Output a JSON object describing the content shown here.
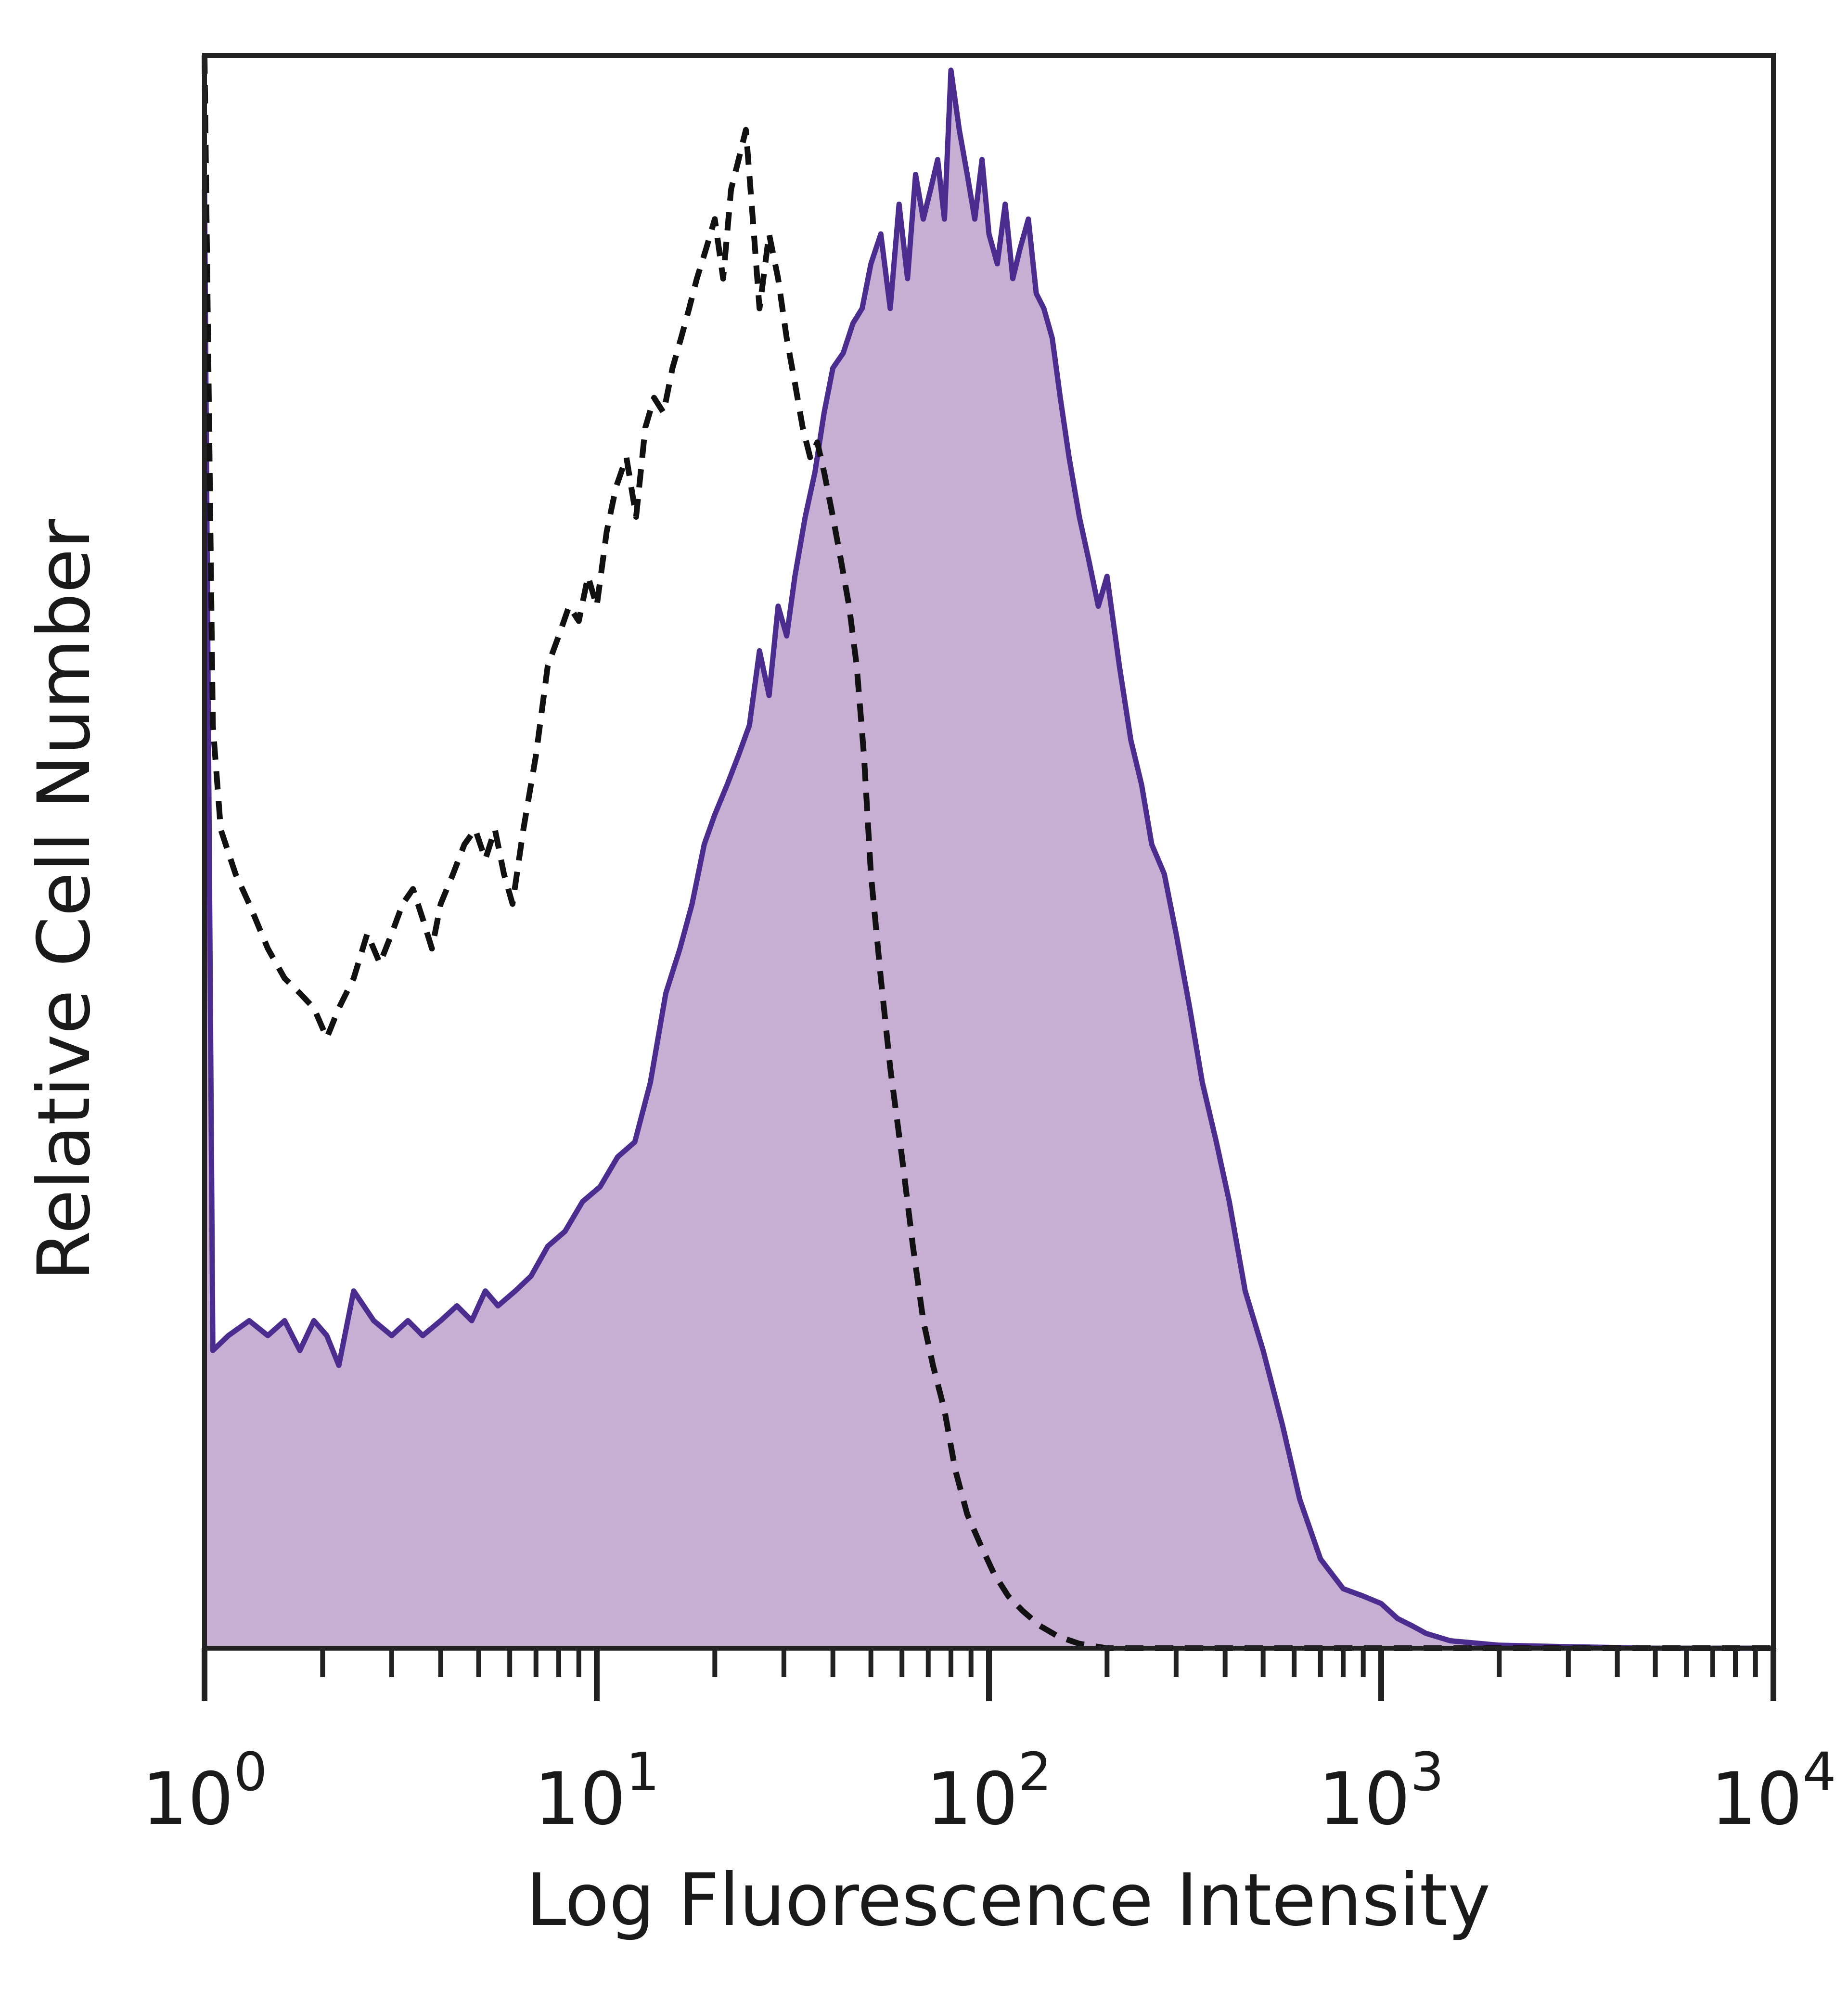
{
  "chart_data": {
    "type": "area",
    "xlabel": "Log Fluorescence Intensity",
    "ylabel": "Relative Cell Number",
    "x_scale": "log",
    "xlim": [
      1,
      10000
    ],
    "ylim": [
      0,
      1.07
    ],
    "x_ticks": [
      {
        "value": 1,
        "base": "10",
        "exp": "0"
      },
      {
        "value": 10,
        "base": "10",
        "exp": "1"
      },
      {
        "value": 100,
        "base": "10",
        "exp": "2"
      },
      {
        "value": 1000,
        "base": "10",
        "exp": "3"
      },
      {
        "value": 10000,
        "base": "10",
        "exp": "4"
      }
    ],
    "colors": {
      "stained_fill": "#c7aed3",
      "stained_line": "#4b2d8f",
      "control_line": "#111111",
      "frame": "#222222"
    },
    "series": [
      {
        "style": "filled-solid",
        "x": [
          1,
          1.05,
          1.15,
          1.3,
          1.45,
          1.6,
          1.75,
          1.9,
          2.05,
          2.2,
          2.4,
          2.7,
          3.0,
          3.3,
          3.6,
          4.0,
          4.4,
          4.8,
          5.2,
          5.6,
          6.2,
          6.8,
          7.5,
          8.3,
          9.2,
          10.2,
          11.3,
          12.5,
          13.7,
          15.0,
          16.3,
          17.5,
          18.8,
          20.0,
          21.5,
          23.0,
          24.5,
          26.0,
          27.5,
          29.0,
          30.5,
          32.0,
          34.0,
          36.0,
          38.0,
          40.0,
          42.5,
          45.0,
          47.5,
          50.0,
          53.0,
          56.0,
          59.0,
          62.0,
          65.0,
          68.0,
          71.0,
          74.0,
          77.0,
          80.0,
          84.0,
          88.0,
          92.0,
          96.0,
          100,
          105,
          110,
          115,
          120,
          126,
          132,
          138,
          145,
          152,
          160,
          170,
          180,
          190,
          200,
          215,
          230,
          245,
          260,
          280,
          300,
          325,
          350,
          380,
          410,
          450,
          500,
          560,
          620,
          700,
          800,
          900,
          1000,
          1100,
          1200,
          1300,
          1500,
          2000,
          3000,
          5000,
          10000
        ],
        "y": [
          0.98,
          0.2,
          0.21,
          0.22,
          0.21,
          0.22,
          0.2,
          0.22,
          0.21,
          0.19,
          0.24,
          0.22,
          0.21,
          0.22,
          0.21,
          0.22,
          0.23,
          0.22,
          0.24,
          0.23,
          0.24,
          0.25,
          0.27,
          0.28,
          0.3,
          0.31,
          0.33,
          0.34,
          0.38,
          0.44,
          0.47,
          0.5,
          0.54,
          0.56,
          0.58,
          0.6,
          0.62,
          0.67,
          0.64,
          0.7,
          0.68,
          0.72,
          0.76,
          0.79,
          0.83,
          0.86,
          0.87,
          0.89,
          0.9,
          0.93,
          0.95,
          0.9,
          0.97,
          0.92,
          0.99,
          0.96,
          0.98,
          1.0,
          0.96,
          1.06,
          1.02,
          0.99,
          0.96,
          1.0,
          0.95,
          0.93,
          0.97,
          0.92,
          0.94,
          0.96,
          0.91,
          0.9,
          0.88,
          0.84,
          0.8,
          0.76,
          0.73,
          0.7,
          0.72,
          0.66,
          0.61,
          0.58,
          0.54,
          0.52,
          0.48,
          0.43,
          0.38,
          0.34,
          0.3,
          0.24,
          0.2,
          0.15,
          0.1,
          0.06,
          0.04,
          0.035,
          0.03,
          0.02,
          0.015,
          0.01,
          0.005,
          0.002,
          0.001,
          0.0,
          0.0
        ]
      },
      {
        "style": "dashed",
        "x": [
          1,
          1.05,
          1.1,
          1.2,
          1.3,
          1.45,
          1.6,
          1.75,
          1.9,
          2.05,
          2.2,
          2.4,
          2.6,
          2.8,
          3.0,
          3.2,
          3.4,
          3.6,
          3.8,
          4.0,
          4.3,
          4.6,
          4.9,
          5.2,
          5.5,
          5.8,
          6.1,
          6.5,
          7.0,
          7.5,
          8.0,
          8.5,
          9.0,
          9.5,
          10.0,
          10.6,
          11.2,
          11.9,
          12.6,
          13.3,
          14.0,
          14.8,
          15.6,
          16.4,
          17.2,
          18.0,
          19.0,
          20.0,
          21.0,
          22.0,
          23.0,
          24.0,
          25.0,
          26.0,
          27.5,
          29.0,
          30.5,
          32.0,
          33.5,
          35.0,
          36.5,
          38.0,
          40.0,
          42.0,
          44.0,
          46.0,
          48.0,
          50.0,
          53.0,
          56.0,
          60.0,
          64.0,
          68.0,
          72.0,
          77.0,
          82.0,
          88.0,
          95.0,
          103,
          112,
          122,
          135,
          150,
          170,
          200,
          300,
          1000,
          10000
        ],
        "y": [
          1.07,
          0.62,
          0.55,
          0.52,
          0.5,
          0.47,
          0.45,
          0.44,
          0.43,
          0.41,
          0.43,
          0.45,
          0.48,
          0.46,
          0.48,
          0.5,
          0.51,
          0.49,
          0.47,
          0.5,
          0.52,
          0.54,
          0.55,
          0.53,
          0.55,
          0.52,
          0.5,
          0.55,
          0.6,
          0.66,
          0.68,
          0.7,
          0.69,
          0.72,
          0.7,
          0.75,
          0.78,
          0.8,
          0.76,
          0.82,
          0.84,
          0.83,
          0.86,
          0.88,
          0.9,
          0.92,
          0.94,
          0.96,
          0.92,
          0.98,
          1.0,
          1.02,
          0.96,
          0.9,
          0.95,
          0.92,
          0.88,
          0.85,
          0.82,
          0.8,
          0.81,
          0.79,
          0.76,
          0.73,
          0.7,
          0.66,
          0.6,
          0.52,
          0.45,
          0.39,
          0.33,
          0.27,
          0.22,
          0.19,
          0.16,
          0.12,
          0.09,
          0.07,
          0.05,
          0.035,
          0.025,
          0.015,
          0.008,
          0.003,
          0.0,
          0.0,
          0.0,
          0.0
        ]
      }
    ]
  }
}
